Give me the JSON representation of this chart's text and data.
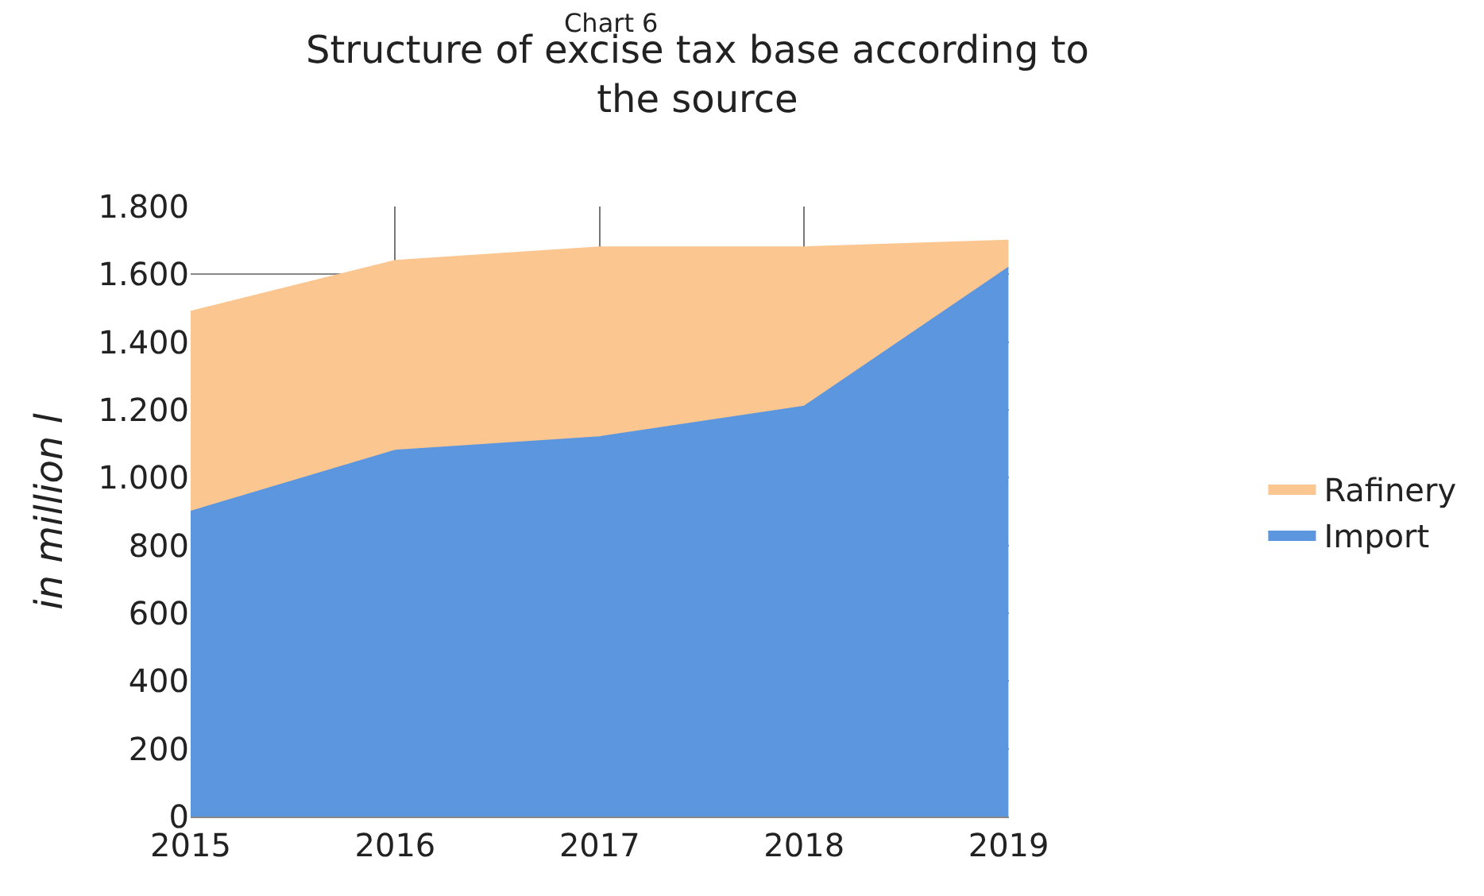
{
  "chart_data": {
    "type": "area",
    "stacked": true,
    "title": "Structure of excise tax base according to the source",
    "ylabel": "in million l",
    "annotations": [
      "Chart 6"
    ],
    "categories": [
      "2015",
      "2016",
      "2017",
      "2018",
      "2019"
    ],
    "series": [
      {
        "name": "Import",
        "color": "#5b96de",
        "values": [
          900,
          1080,
          1120,
          1210,
          1620
        ]
      },
      {
        "name": "Rafinery",
        "color": "#fbc690",
        "values": [
          590,
          560,
          560,
          470,
          80
        ]
      }
    ],
    "ylim": [
      0,
      1800
    ],
    "yticks": [
      0,
      200,
      400,
      600,
      800,
      {
        "value": 1000,
        "label": "1.000"
      },
      {
        "value": 1200,
        "label": "1.200"
      },
      {
        "value": 1400,
        "label": "1.400"
      },
      {
        "value": 1600,
        "label": "1.600"
      },
      {
        "value": 1800,
        "label": "1.800"
      }
    ],
    "grid": true,
    "legend": "right"
  }
}
